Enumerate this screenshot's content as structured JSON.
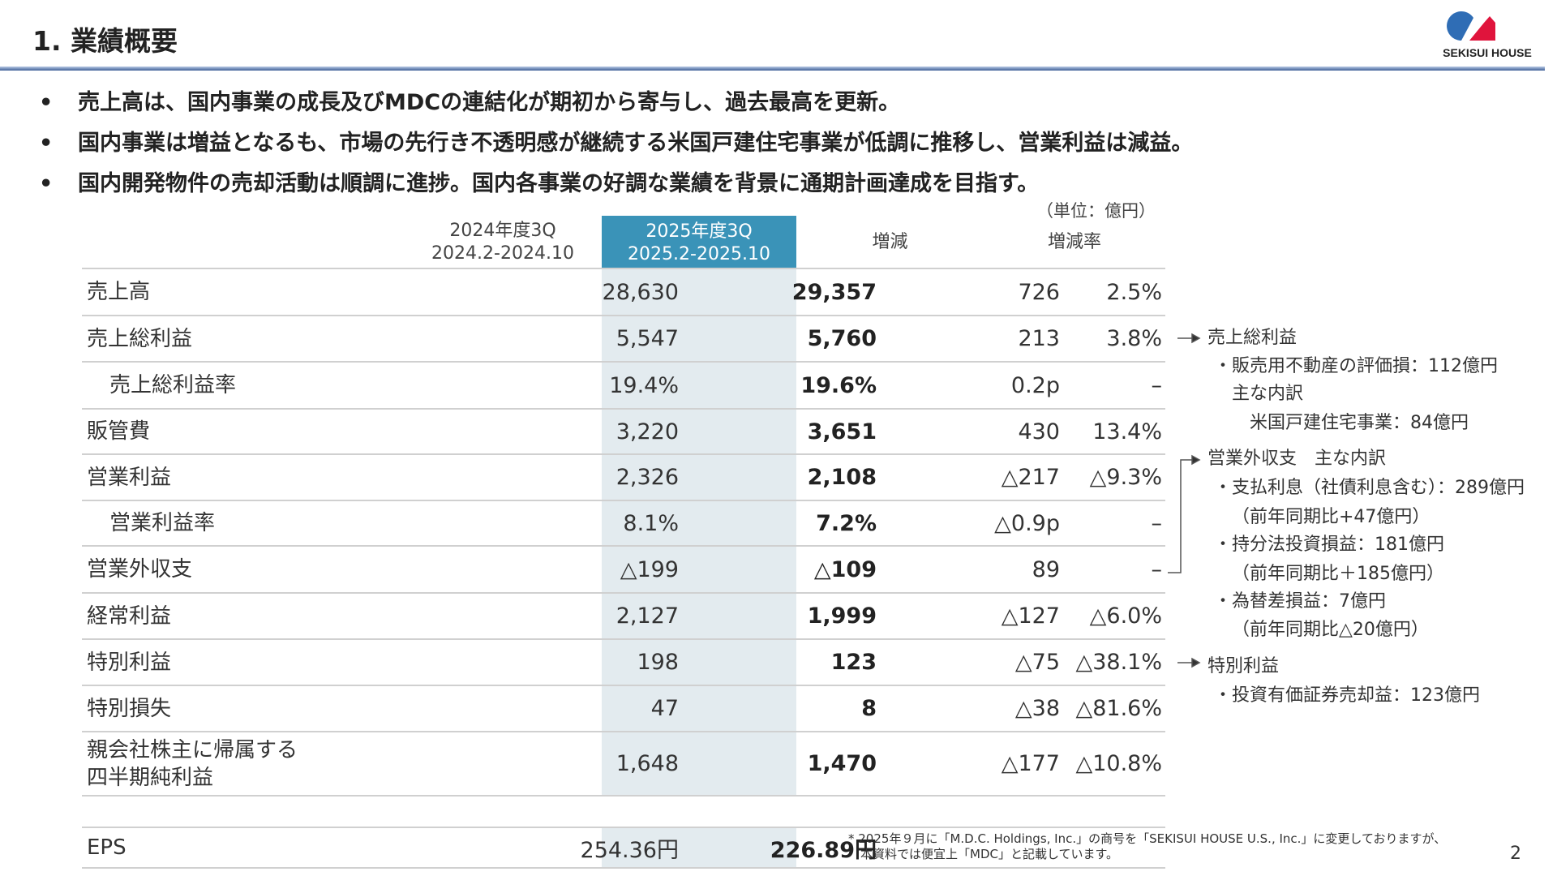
{
  "header": {
    "title": "1. 業績概要",
    "logo_text": "SEKISUI HOUSE"
  },
  "bullets": [
    "売上高は、国内事業の成長及びMDCの連結化が期初から寄与し、過去最高を更新。",
    "国内事業は増益となるも、市場の先行き不透明感が継続する米国戸建住宅事業が低調に推移し、営業利益は減益。",
    "国内開発物件の売却活動は順調に進捗。国内各事業の好調な業績を背景に通期計画達成を目指す。"
  ],
  "bullet_marker": "•",
  "table": {
    "unit": "（単位：億円）",
    "headers": {
      "prev_line1": "2024年度3Q",
      "prev_line2": "2024.2-2024.10",
      "curr_line1": "2025年度3Q",
      "curr_line2": "2025.2-2025.10",
      "change": "増減",
      "rate": "増減率"
    },
    "rows": [
      {
        "label": "売上高",
        "prev": "28,630",
        "curr": "29,357",
        "change": "726",
        "rate": "2.5%"
      },
      {
        "label": "売上総利益",
        "prev": "5,547",
        "curr": "5,760",
        "change": "213",
        "rate": "3.8%"
      },
      {
        "label": "売上総利益率",
        "prev": "19.4%",
        "curr": "19.6%",
        "change": "0.2p",
        "rate": "–"
      },
      {
        "label": "販管費",
        "prev": "3,220",
        "curr": "3,651",
        "change": "430",
        "rate": "13.4%"
      },
      {
        "label": "営業利益",
        "prev": "2,326",
        "curr": "2,108",
        "change": "△217",
        "rate": "△9.3%"
      },
      {
        "label": "営業利益率",
        "prev": "8.1%",
        "curr": "7.2%",
        "change": "△0.9p",
        "rate": "–"
      },
      {
        "label": "営業外収支",
        "prev": "△199",
        "curr": "△109",
        "change": "89",
        "rate": "–"
      },
      {
        "label": "経常利益",
        "prev": "2,127",
        "curr": "1,999",
        "change": "△127",
        "rate": "△6.0%"
      },
      {
        "label": "特別利益",
        "prev": "198",
        "curr": "123",
        "change": "△75",
        "rate": "△38.1%"
      },
      {
        "label": "特別損失",
        "prev": "47",
        "curr": "8",
        "change": "△38",
        "rate": "△81.6%"
      },
      {
        "label_line1": "親会社株主に帰属する",
        "label_line2": "四半期純利益",
        "prev": "1,648",
        "curr": "1,470",
        "change": "△177",
        "rate": "△10.8%"
      }
    ],
    "eps": {
      "label": "EPS",
      "prev": "254.36円",
      "curr": "226.89円"
    }
  },
  "notes": [
    "売上総利益",
    "・販売用不動産の評価損：112億円",
    "主な内訳",
    "米国戸建住宅事業：84億円",
    "営業外収支　主な内訳",
    "・支払利息（社債利息含む）：289億円",
    "（前年同期比+47億円）",
    "・持分法投資損益：181億円",
    "（前年同期比＋185億円）",
    "・為替差損益：7億円",
    "（前年同期比△20億円）",
    "特別利益",
    "・投資有価証券売却益：123億円"
  ],
  "footnote": {
    "line1": "* 2025年９月に「M.D.C. Holdings, Inc.」の商号を「SEKISUI HOUSE U.S., Inc.」に変更しておりますが、",
    "line2": "本資料では便宜上「MDC」と記載しています。"
  },
  "page_number": "2",
  "colors": {
    "header_accent": "#3a93b8",
    "highlight_column": "#e3ebef",
    "logo_blue": "#2f6db5",
    "logo_red": "#e0143c"
  }
}
